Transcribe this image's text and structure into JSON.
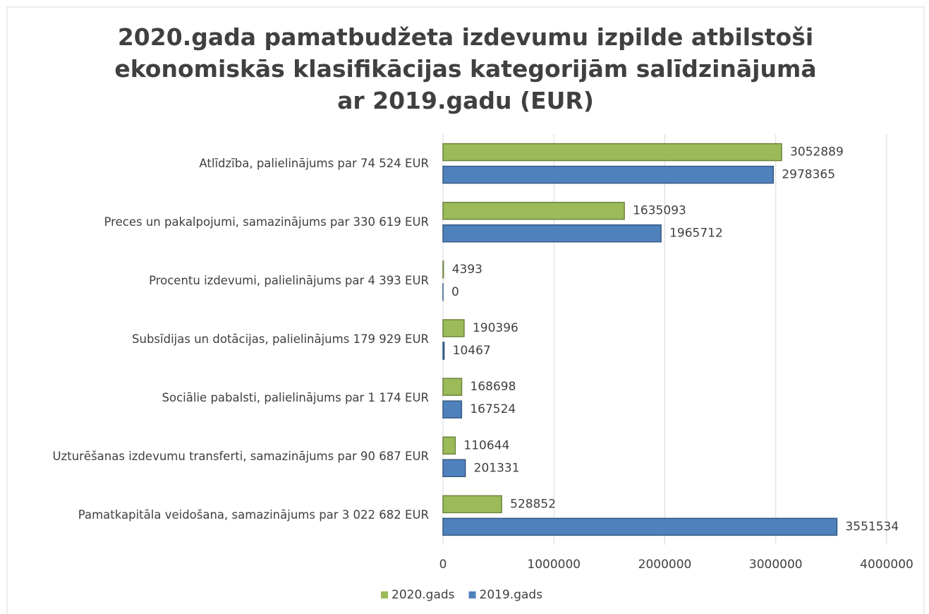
{
  "chart_data": {
    "type": "bar",
    "orientation": "horizontal",
    "title": "2020.gada pamatbudžeta izdevumu izpilde atbilstoši ekonomiskās klasifikācijas kategorijām salīdzinājumā ar 2019.gadu  (EUR)",
    "categories": [
      "Atlīdzība, palielinājums par 74 524 EUR",
      "Preces un pakalpojumi, samazinājums par 330 619 EUR",
      "Procentu izdevumi, palielinājums par  4 393 EUR",
      "Subsīdijas un dotācijas, palielinājums 179 929 EUR",
      "Sociālie pabalsti, palielinājums par 1 174 EUR",
      "Uzturēšanas izdevumu transferti, samazinājums par 90 687 EUR",
      "Pamatkapitāla veidošana, samazinājums par 3 022 682 EUR"
    ],
    "series": [
      {
        "name": "2020.gads",
        "color": "#9bbb59",
        "values": [
          3052889,
          1635093,
          4393,
          190396,
          168698,
          110644,
          528852
        ]
      },
      {
        "name": "2019.gads",
        "color": "#4f81bd",
        "values": [
          2978365,
          1965712,
          0,
          10467,
          167524,
          201331,
          3551534
        ]
      }
    ],
    "xlim": [
      0,
      4000000
    ],
    "xticks": [
      0,
      1000000,
      2000000,
      3000000,
      4000000
    ],
    "grid": true,
    "legend": "bottom"
  }
}
